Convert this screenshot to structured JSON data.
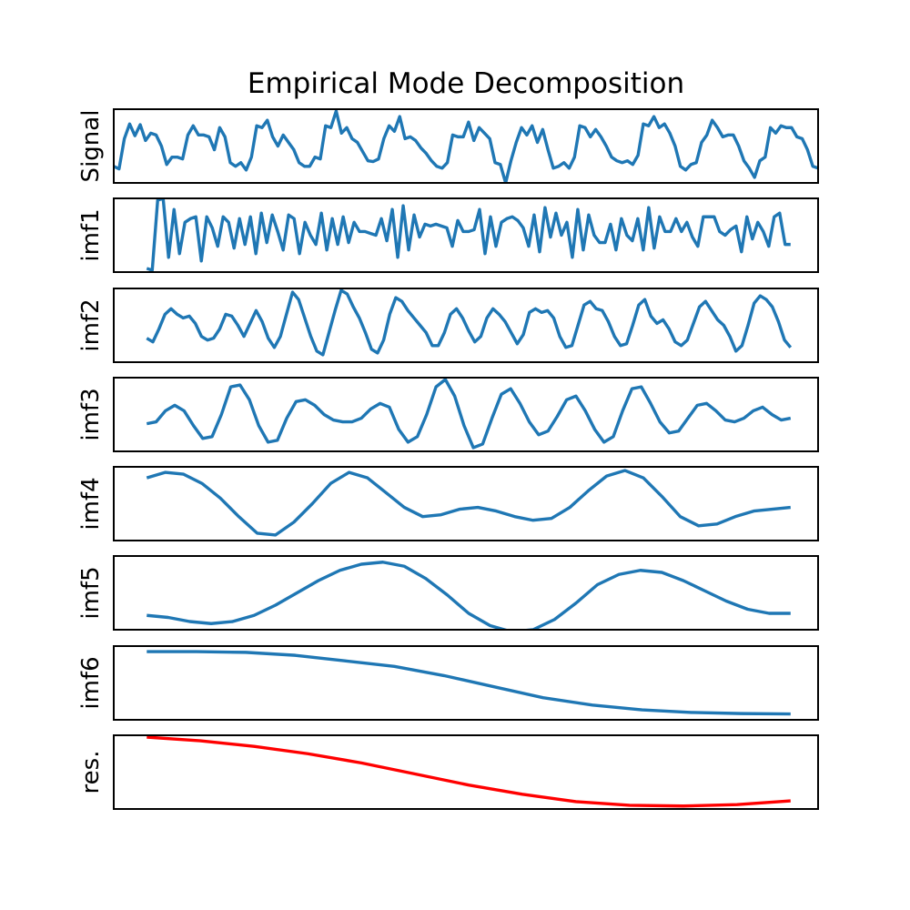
{
  "chart_data": {
    "type": "line",
    "title": "Empirical Mode Decomposition",
    "colors": {
      "component": "#1f77b4",
      "residual": "#ff0000"
    },
    "panels": [
      {
        "label": "Signal",
        "color": "#1f77b4",
        "x_start": 0,
        "x_end": 128,
        "ylim": [
          -1.0,
          1.0
        ],
        "values": [
          -0.55,
          -0.62,
          0.2,
          0.6,
          0.28,
          0.58,
          0.15,
          0.35,
          0.3,
          0.0,
          -0.5,
          -0.3,
          -0.3,
          -0.35,
          0.3,
          0.55,
          0.3,
          0.3,
          0.25,
          -0.1,
          0.5,
          0.25,
          -0.45,
          -0.55,
          -0.45,
          -0.65,
          -0.3,
          0.55,
          0.5,
          0.7,
          0.25,
          0.0,
          0.3,
          0.1,
          -0.1,
          -0.45,
          -0.55,
          -0.55,
          -0.3,
          -0.35,
          0.55,
          0.5,
          0.95,
          0.35,
          0.5,
          0.2,
          0.1,
          -0.15,
          -0.4,
          -0.42,
          -0.35,
          0.2,
          0.55,
          0.4,
          0.8,
          0.2,
          0.25,
          0.15,
          -0.05,
          -0.2,
          -0.4,
          -0.55,
          -0.6,
          -0.45,
          0.3,
          0.25,
          0.25,
          0.65,
          0.15,
          0.5,
          0.35,
          0.2,
          -0.45,
          -0.5,
          -1.0,
          -0.4,
          0.1,
          0.5,
          0.3,
          0.55,
          0.1,
          0.45,
          -0.1,
          -0.6,
          -0.55,
          -0.45,
          -0.6,
          -0.3,
          0.55,
          0.5,
          0.25,
          0.45,
          0.25,
          0.0,
          -0.3,
          -0.4,
          -0.45,
          -0.4,
          -0.5,
          -0.25,
          0.6,
          0.55,
          0.8,
          0.5,
          0.6,
          0.35,
          0.0,
          -0.55,
          -0.65,
          -0.5,
          -0.45,
          0.1,
          0.3,
          0.7,
          0.5,
          0.25,
          0.3,
          0.3,
          0.0,
          -0.4,
          -0.6,
          -0.85,
          -0.4,
          -0.3,
          0.5,
          0.35,
          0.55,
          0.5,
          0.5,
          0.25,
          0.2,
          -0.1,
          -0.55,
          -0.6
        ]
      },
      {
        "label": "imf1",
        "color": "#1f77b4",
        "x_start": 6,
        "x_end": 123,
        "ylim": [
          -1.0,
          1.0
        ],
        "values": [
          -0.9,
          -0.95,
          0.95,
          1.0,
          -0.6,
          0.7,
          -0.5,
          0.35,
          0.45,
          0.5,
          -0.7,
          0.5,
          0.2,
          -0.3,
          0.5,
          0.35,
          -0.35,
          0.45,
          -0.25,
          0.5,
          -0.5,
          0.6,
          -0.2,
          0.55,
          0.1,
          -0.4,
          0.55,
          0.45,
          -0.5,
          0.35,
          0.0,
          -0.25,
          0.6,
          -0.4,
          0.45,
          -0.25,
          0.5,
          -0.2,
          0.35,
          0.1,
          0.1,
          0.05,
          0.0,
          0.45,
          -0.15,
          0.7,
          -0.6,
          0.8,
          -0.4,
          0.55,
          -0.05,
          0.3,
          0.25,
          0.3,
          0.25,
          0.2,
          -0.3,
          0.4,
          0.1,
          0.1,
          0.15,
          0.7,
          -0.5,
          0.5,
          -0.3,
          0.35,
          0.45,
          0.5,
          0.4,
          0.2,
          -0.3,
          0.55,
          -0.45,
          0.75,
          -0.05,
          0.6,
          0.0,
          0.35,
          -0.6,
          0.7,
          -0.4,
          0.55,
          0.0,
          -0.2,
          -0.2,
          0.3,
          -0.4,
          0.45,
          0.0,
          -0.15,
          0.45,
          -0.4,
          0.75,
          -0.35,
          0.5,
          0.1,
          0.1,
          0.45,
          0.1,
          0.35,
          -0.05,
          -0.3,
          0.5,
          0.5,
          0.5,
          0.1,
          0.0,
          0.15,
          0.25,
          -0.45,
          0.5,
          -0.1,
          0.35,
          0.1,
          -0.3,
          0.5,
          0.6,
          -0.25,
          -0.25
        ]
      },
      {
        "label": "imf2",
        "color": "#1f77b4",
        "x_start": 6,
        "x_end": 123,
        "ylim": [
          -1.0,
          1.0
        ],
        "values": [
          -0.35,
          -0.45,
          -0.1,
          0.3,
          0.45,
          0.3,
          0.2,
          0.25,
          0.05,
          -0.3,
          -0.4,
          -0.35,
          -0.1,
          0.3,
          0.25,
          0.0,
          -0.3,
          0.05,
          0.4,
          0.1,
          -0.35,
          -0.6,
          -0.3,
          0.3,
          0.9,
          0.7,
          0.2,
          -0.3,
          -0.7,
          -0.8,
          -0.2,
          0.4,
          0.95,
          0.85,
          0.5,
          0.2,
          -0.2,
          -0.65,
          -0.75,
          -0.4,
          0.3,
          0.75,
          0.65,
          0.4,
          0.2,
          0.0,
          -0.2,
          -0.55,
          -0.55,
          -0.2,
          0.3,
          0.45,
          0.2,
          -0.15,
          -0.45,
          -0.3,
          0.2,
          0.45,
          0.3,
          0.1,
          -0.2,
          -0.5,
          -0.25,
          0.35,
          0.45,
          0.35,
          0.4,
          0.2,
          -0.3,
          -0.6,
          -0.55,
          0.0,
          0.55,
          0.65,
          0.45,
          0.4,
          0.1,
          -0.3,
          -0.55,
          -0.5,
          0.0,
          0.55,
          0.7,
          0.25,
          0.05,
          0.15,
          -0.1,
          -0.45,
          -0.55,
          -0.4,
          0.05,
          0.5,
          0.65,
          0.4,
          0.15,
          0.0,
          -0.3,
          -0.7,
          -0.55,
          0.0,
          0.6,
          0.8,
          0.7,
          0.5,
          0.1,
          -0.4,
          -0.6
        ]
      },
      {
        "label": "imf3",
        "color": "#1f77b4",
        "x_start": 6,
        "x_end": 123,
        "ylim": [
          -1.0,
          1.0
        ],
        "values": [
          -0.25,
          -0.2,
          0.1,
          0.25,
          0.1,
          -0.3,
          -0.65,
          -0.6,
          0.0,
          0.75,
          0.8,
          0.4,
          -0.3,
          -0.75,
          -0.7,
          -0.1,
          0.35,
          0.4,
          0.25,
          0.0,
          -0.15,
          -0.2,
          -0.2,
          -0.1,
          0.15,
          0.3,
          0.2,
          -0.4,
          -0.75,
          -0.6,
          0.0,
          0.75,
          0.95,
          0.5,
          -0.3,
          -0.9,
          -0.8,
          -0.1,
          0.55,
          0.7,
          0.3,
          -0.2,
          -0.55,
          -0.45,
          -0.05,
          0.4,
          0.5,
          0.1,
          -0.4,
          -0.75,
          -0.6,
          0.1,
          0.7,
          0.75,
          0.3,
          -0.2,
          -0.5,
          -0.45,
          -0.1,
          0.25,
          0.3,
          0.1,
          -0.15,
          -0.2,
          -0.1,
          0.1,
          0.2,
          0.0,
          -0.15,
          -0.1
        ]
      },
      {
        "label": "imf4",
        "color": "#1f77b4",
        "x_start": 6,
        "x_end": 123,
        "ylim": [
          -1.0,
          1.0
        ],
        "values": [
          0.7,
          0.85,
          0.8,
          0.55,
          0.15,
          -0.35,
          -0.8,
          -0.85,
          -0.5,
          0.0,
          0.55,
          0.85,
          0.7,
          0.3,
          -0.1,
          -0.35,
          -0.3,
          -0.15,
          -0.1,
          -0.2,
          -0.35,
          -0.45,
          -0.4,
          -0.1,
          0.35,
          0.75,
          0.9,
          0.7,
          0.2,
          -0.35,
          -0.6,
          -0.55,
          -0.35,
          -0.2,
          -0.15,
          -0.1
        ]
      },
      {
        "label": "imf5",
        "color": "#1f77b4",
        "x_start": 6,
        "x_end": 123,
        "ylim": [
          -0.75,
          1.05
        ],
        "values": [
          -0.4,
          -0.45,
          -0.55,
          -0.6,
          -0.55,
          -0.4,
          -0.15,
          0.15,
          0.45,
          0.7,
          0.85,
          0.9,
          0.8,
          0.5,
          0.1,
          -0.35,
          -0.65,
          -0.8,
          -0.75,
          -0.5,
          -0.1,
          0.35,
          0.6,
          0.7,
          0.65,
          0.45,
          0.2,
          -0.05,
          -0.25,
          -0.35,
          -0.35
        ]
      },
      {
        "label": "imf6",
        "color": "#1f77b4",
        "x_start": 6,
        "x_end": 123,
        "ylim": [
          -0.95,
          1.05
        ],
        "values": [
          0.9,
          0.9,
          0.88,
          0.8,
          0.65,
          0.5,
          0.25,
          -0.05,
          -0.35,
          -0.55,
          -0.68,
          -0.75,
          -0.78,
          -0.79
        ]
      },
      {
        "label": "res.",
        "color": "#ff0000",
        "x_start": 6,
        "x_end": 123,
        "ylim": [
          -1.0,
          1.0
        ],
        "values": [
          0.95,
          0.85,
          0.7,
          0.5,
          0.25,
          -0.05,
          -0.35,
          -0.6,
          -0.8,
          -0.9,
          -0.92,
          -0.88,
          -0.78
        ]
      }
    ]
  }
}
